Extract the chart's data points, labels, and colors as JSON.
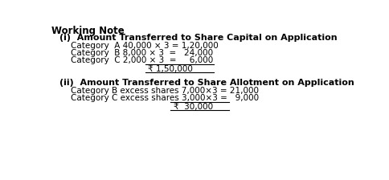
{
  "title": "Working Note",
  "section1_heading": "(i)  Amount Transferred to Share Capital on Application",
  "section1_lines": [
    "Category  A 40,000 × 3 = 1,20,000",
    "Category  B 8,000 × 3  =   24,000",
    "Category  C 2,000 × 3  =     6,000"
  ],
  "section1_total_label": "₹ 1,50,000",
  "section2_heading": "(ii)  Amount Transferred to Share Allotment on Application",
  "section2_lines": [
    "Category B excess shares 7,000×3 = 21,000",
    "Category C excess shares 3,000×3 =   9,000"
  ],
  "section2_total_label": "₹  30,000",
  "bg_color": "#ffffff",
  "text_color": "#000000",
  "font_size_title": 8.5,
  "font_size_heading": 8.0,
  "font_size_line": 7.5,
  "font_size_total": 7.5
}
